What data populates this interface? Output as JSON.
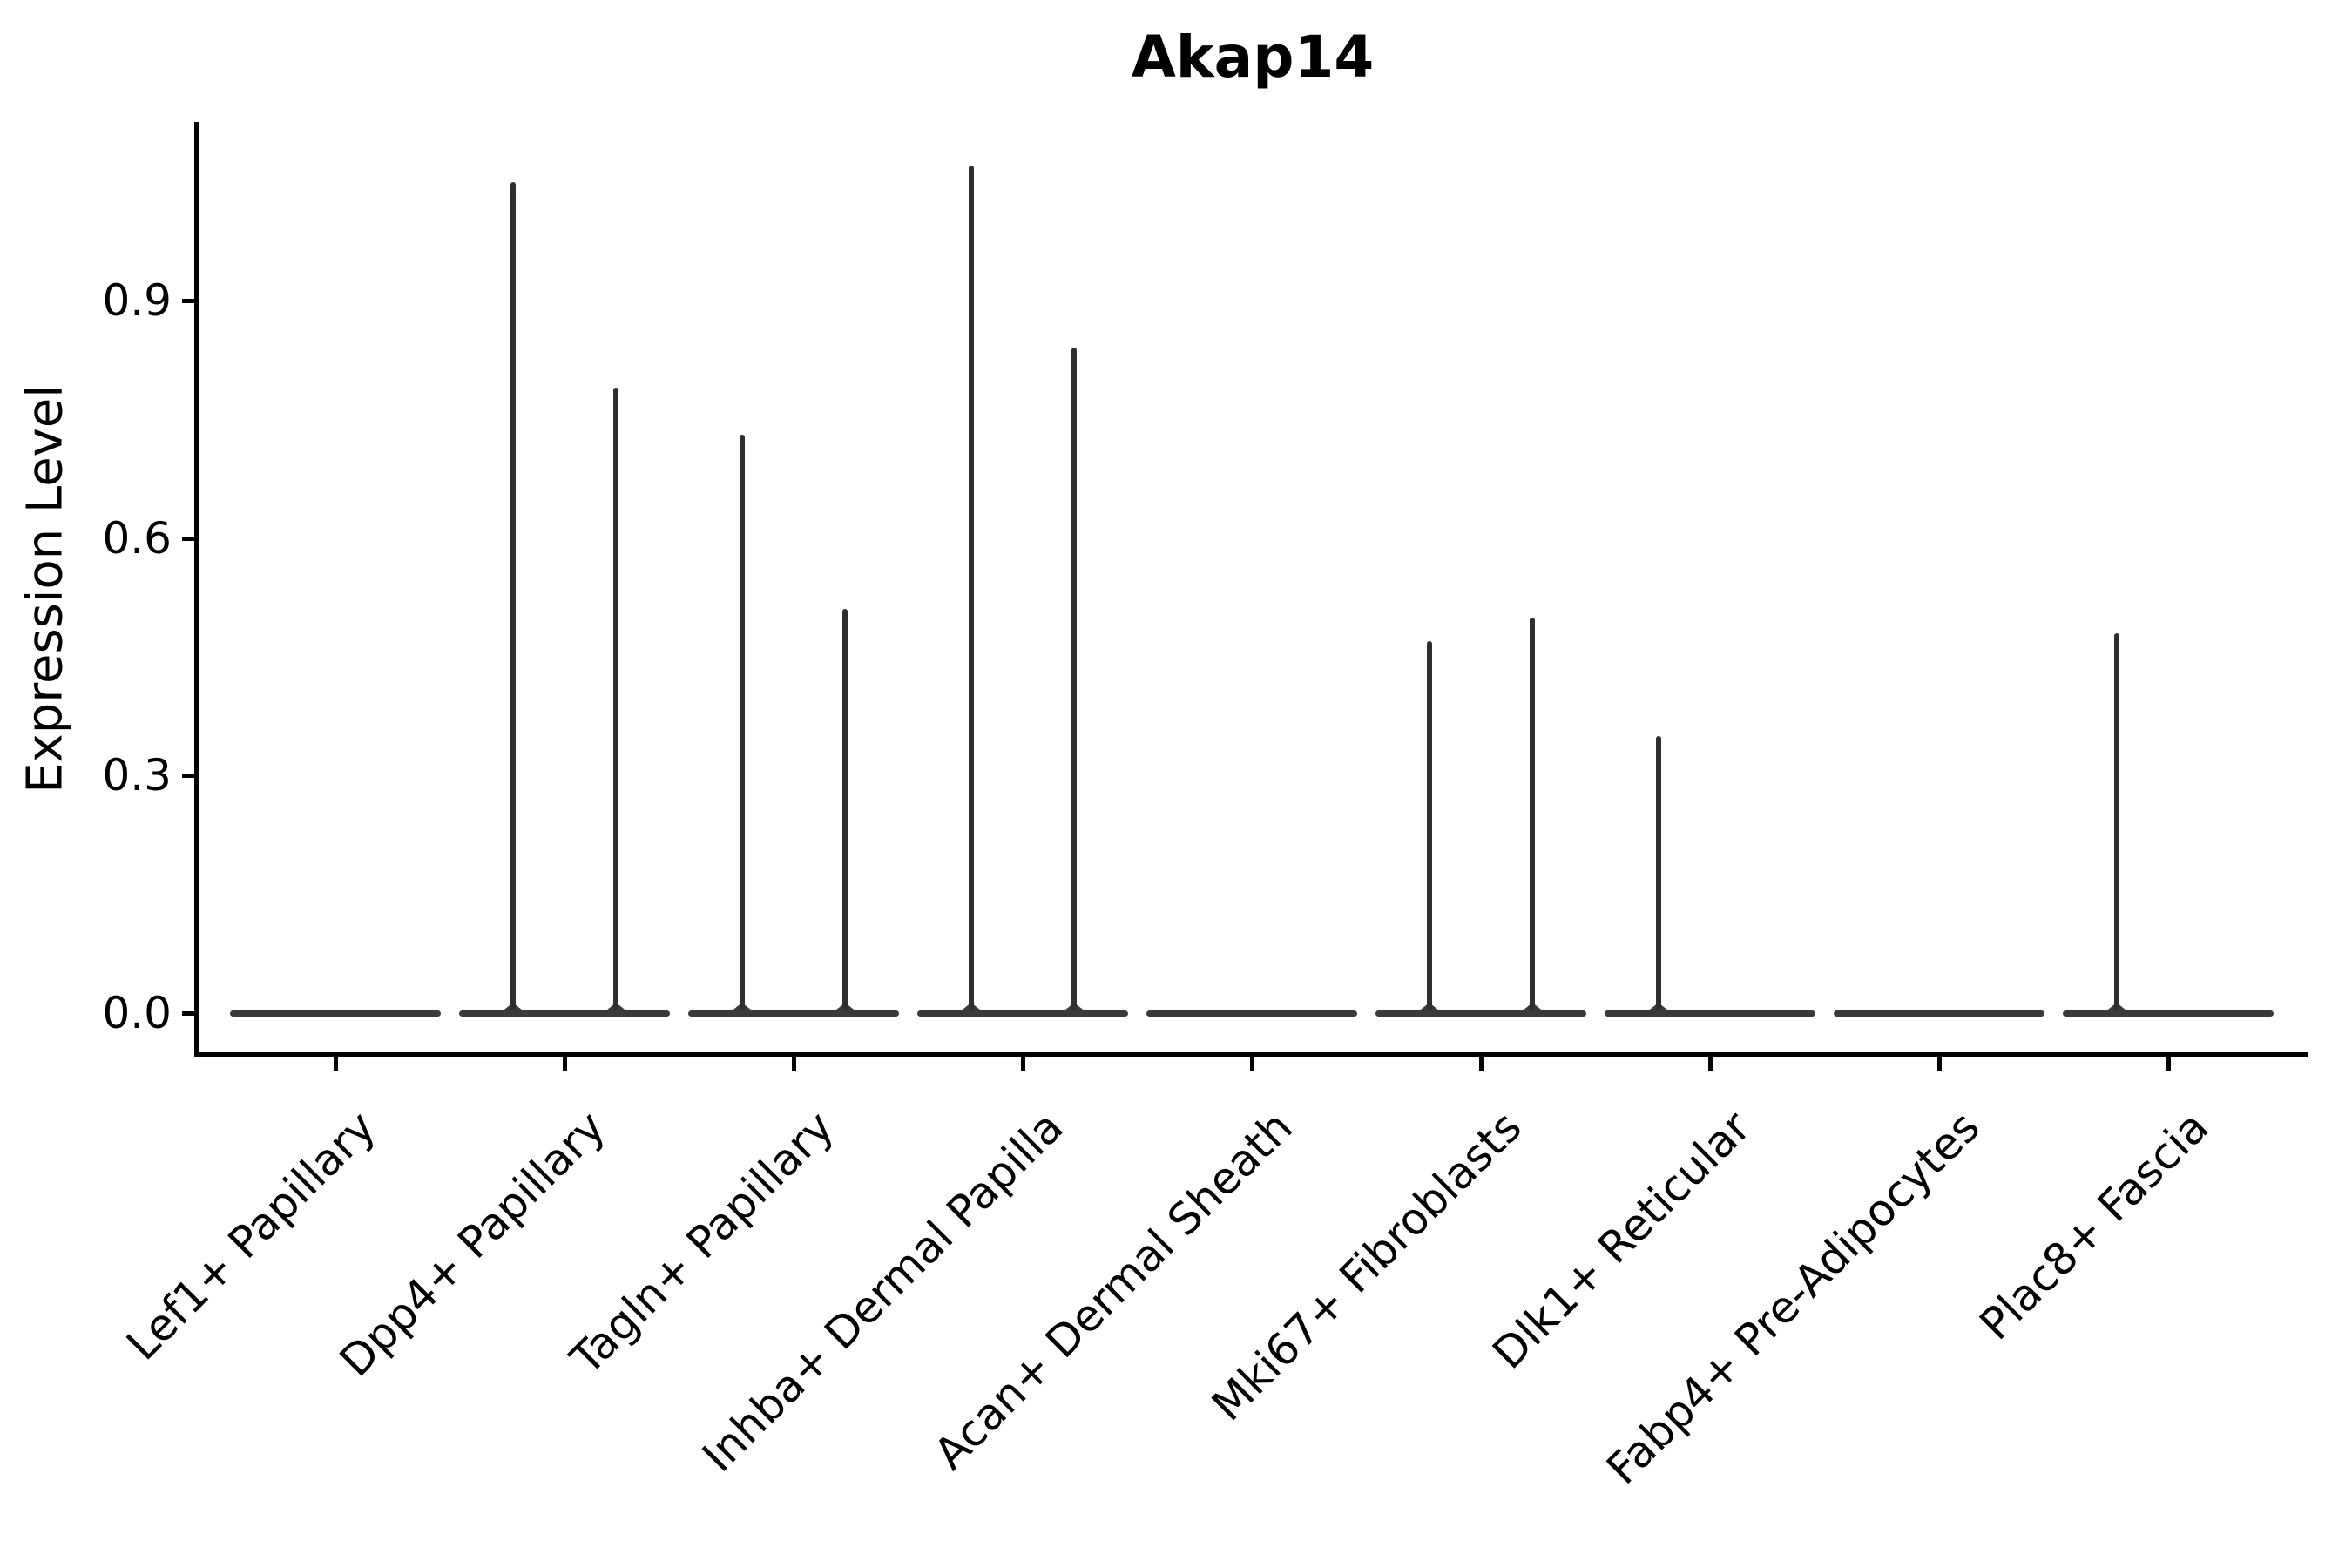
{
  "chart_data": {
    "type": "violin",
    "title": "Akap14",
    "ylabel": "Expression Level",
    "xlabel": "",
    "yticks": [
      0.0,
      0.3,
      0.6,
      0.9
    ],
    "ylim": [
      -0.05,
      1.18
    ],
    "grid": false,
    "legend": "none",
    "x_tick_rotation_deg": 45,
    "categories": [
      "Lef1+ Papillary",
      "Dpp4+ Papillary",
      "Tagln+ Papillary",
      "Inhba+ Dermal Papilla",
      "Acan+ Dermal Sheath",
      "Mki67+ Fibroblasts",
      "Dlk1+ Reticular",
      "Fabp4+ Pre-Adipocytes",
      "Plac8+ Fascia"
    ],
    "series": [
      {
        "name": "Lef1+ Papillary",
        "bulk_at": 0.0,
        "spikes": []
      },
      {
        "name": "Dpp4+ Papillary",
        "bulk_at": 0.0,
        "spikes": [
          {
            "offset": -0.225,
            "max": 1.05
          },
          {
            "offset": 0.225,
            "max": 0.79
          }
        ]
      },
      {
        "name": "Tagln+ Papillary",
        "bulk_at": 0.0,
        "spikes": [
          {
            "offset": -0.225,
            "max": 0.73
          },
          {
            "offset": 0.225,
            "max": 0.51
          }
        ]
      },
      {
        "name": "Inhba+ Dermal Papilla",
        "bulk_at": 0.0,
        "spikes": [
          {
            "offset": -0.225,
            "max": 1.07
          },
          {
            "offset": 0.225,
            "max": 0.84
          }
        ]
      },
      {
        "name": "Acan+ Dermal Sheath",
        "bulk_at": 0.0,
        "spikes": []
      },
      {
        "name": "Mki67+ Fibroblasts",
        "bulk_at": 0.0,
        "spikes": [
          {
            "offset": -0.225,
            "max": 0.47
          },
          {
            "offset": 0.225,
            "max": 0.5
          }
        ]
      },
      {
        "name": "Dlk1+ Reticular",
        "bulk_at": 0.0,
        "spikes": [
          {
            "offset": -0.225,
            "max": 0.35
          }
        ]
      },
      {
        "name": "Fabp4+ Pre-Adipocytes",
        "bulk_at": 0.0,
        "spikes": []
      },
      {
        "name": "Plac8+ Fascia",
        "bulk_at": 0.0,
        "spikes": [
          {
            "offset": -0.225,
            "max": 0.48
          }
        ]
      }
    ],
    "colors": {
      "foreground": "#000000",
      "violin_line": "#3a3a3a",
      "spike_line": "#2e2e2e",
      "background": "#ffffff"
    }
  }
}
